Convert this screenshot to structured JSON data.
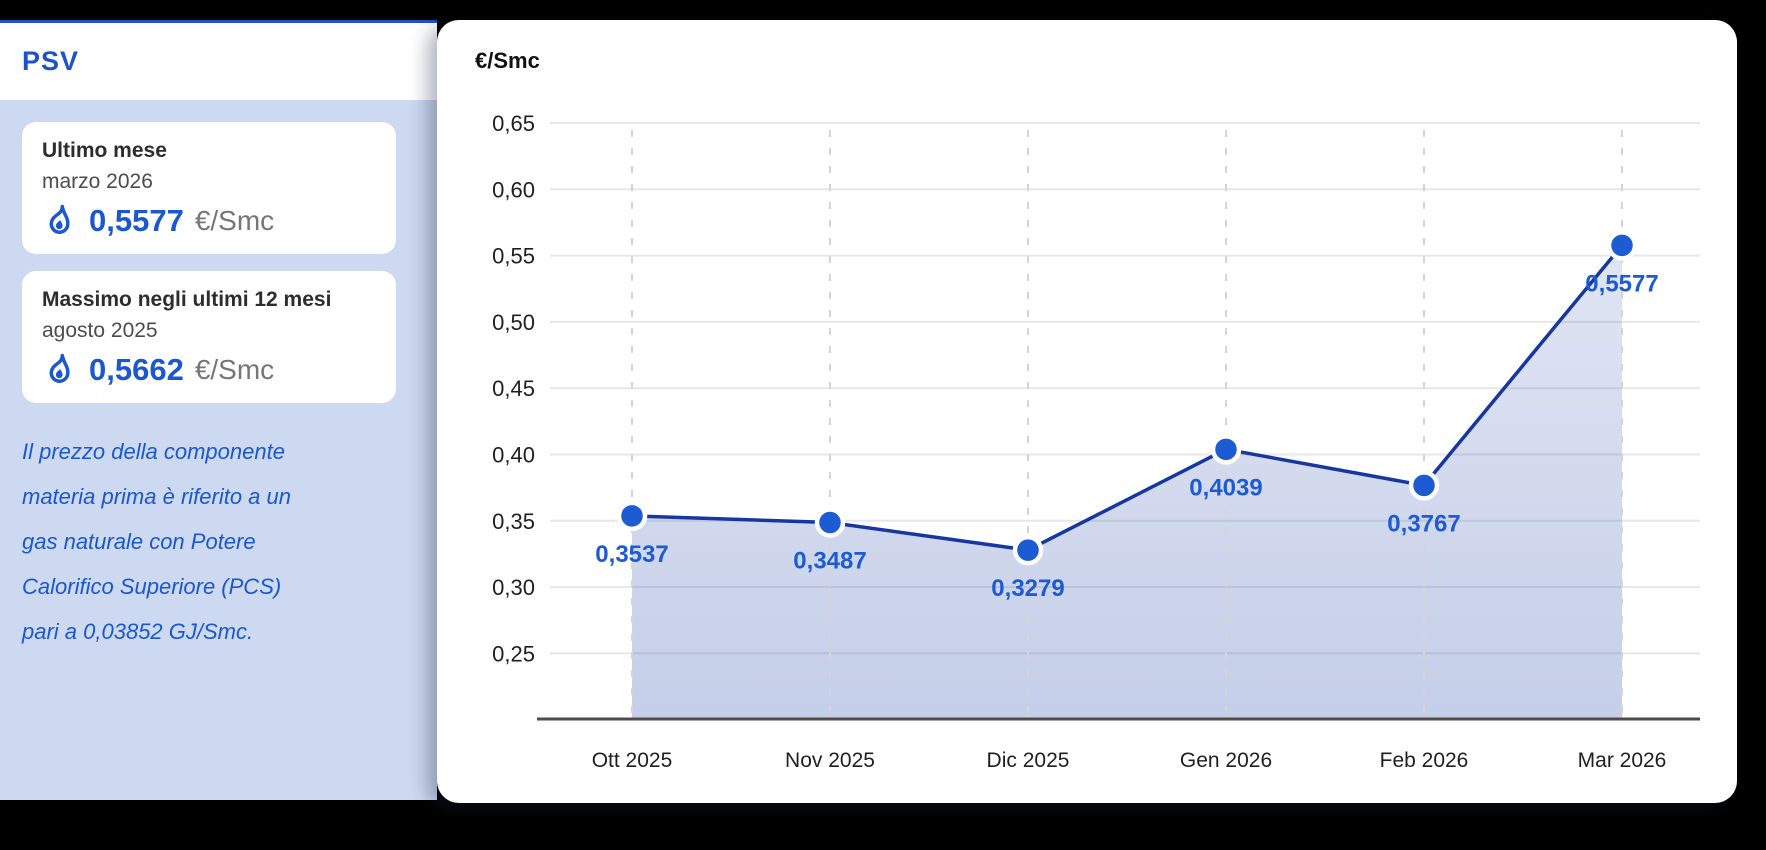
{
  "page": {
    "background": "#000000",
    "accent_color": "#1d52c8"
  },
  "sidebar": {
    "title": "PSV",
    "cards": [
      {
        "title": "Ultimo mese",
        "subtitle": "marzo 2026",
        "value": "0,5577",
        "unit": "€/Smc"
      },
      {
        "title": "Massimo negli ultimi 12 mesi",
        "subtitle": "agosto 2025",
        "value": "0,5662",
        "unit": "€/Smc"
      }
    ],
    "note_lines": [
      "Il prezzo della componente",
      "materia prima è riferito a un",
      "gas naturale con Potere",
      "Calorifico Superiore (PCS)",
      "pari a 0,03852 GJ/Smc."
    ]
  },
  "chart_data": {
    "type": "area",
    "title": "€/Smc",
    "categories": [
      "Ott 2025",
      "Nov 2025",
      "Dic 2025",
      "Gen 2026",
      "Feb 2026",
      "Mar 2026"
    ],
    "values": [
      0.3537,
      0.3487,
      0.3279,
      0.4039,
      0.3767,
      0.5577
    ],
    "point_labels": [
      "0,3537",
      "0,3487",
      "0,3279",
      "0,4039",
      "0,3767",
      "0,5577"
    ],
    "y_ticks": [
      "0,65",
      "0,60",
      "0,55",
      "0,50",
      "0,45",
      "0,40",
      "0,35",
      "0,30",
      "0,25"
    ],
    "y_tick_values": [
      0.65,
      0.6,
      0.55,
      0.5,
      0.45,
      0.4,
      0.35,
      0.3,
      0.25
    ],
    "ylim": [
      0.2,
      0.6985
    ],
    "xlabel": "",
    "ylabel": "€/Smc",
    "legend": "none",
    "grid": "horizontal-solid, vertical-dashed",
    "line_color": "#16379f",
    "marker_color": "#1c5bd2",
    "marker_ring_color": "#ffffff",
    "label_color": "#1d5bd3",
    "tick_color": "#1f1f1f",
    "grid_color": "#e7e7e7",
    "dash_color": "#d5d5d9",
    "axis_color": "#4d4d4d",
    "fill_from": "rgba(64,94,182,0.16)",
    "fill_to": "rgba(64,94,182,0.30)"
  }
}
